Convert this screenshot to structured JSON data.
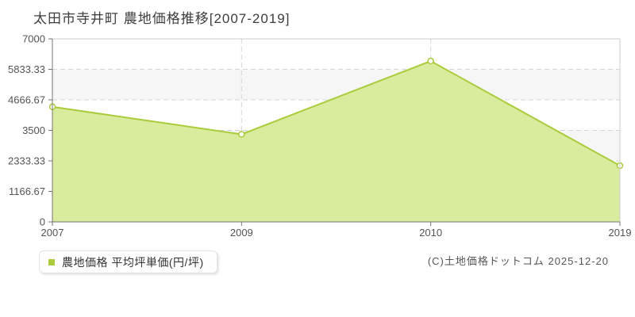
{
  "title": "太田市寺井町 農地価格推移[2007-2019]",
  "legend": {
    "label": "農地価格 平均坪単価(円/坪)",
    "marker_icon": "square-marker-icon"
  },
  "copyright": "(C)土地価格ドットコム 2025-12-20",
  "chart_data": {
    "type": "area",
    "title": "太田市寺井町 農地価格推移[2007-2019]",
    "categories": [
      "2007",
      "2009",
      "2010",
      "2019"
    ],
    "series": [
      {
        "name": "農地価格 平均坪単価(円/坪)",
        "values": [
          4400,
          3350,
          6150,
          2150
        ]
      }
    ],
    "xlabel": "",
    "ylabel": "",
    "ylim": [
      0,
      7000
    ],
    "yticks": [
      0,
      1166.67,
      2333.33,
      3500,
      4666.67,
      5833.33,
      7000
    ],
    "ytick_labels": [
      "0",
      "1166.67",
      "2333.33",
      "3500",
      "4666.67",
      "5833.33",
      "7000"
    ],
    "grid": "dashed",
    "legend_position": "bottom-left",
    "colors": {
      "line": "#a9cc3c",
      "fill": "#d9eb9c",
      "marker_fill": "#ffffff",
      "grid_line": "#d6d6d6",
      "band_even": "#ffffff",
      "band_odd": "#f6f6f6",
      "axis": "#757575",
      "plot_border": "#cccccc",
      "tick_text": "#545454"
    }
  }
}
